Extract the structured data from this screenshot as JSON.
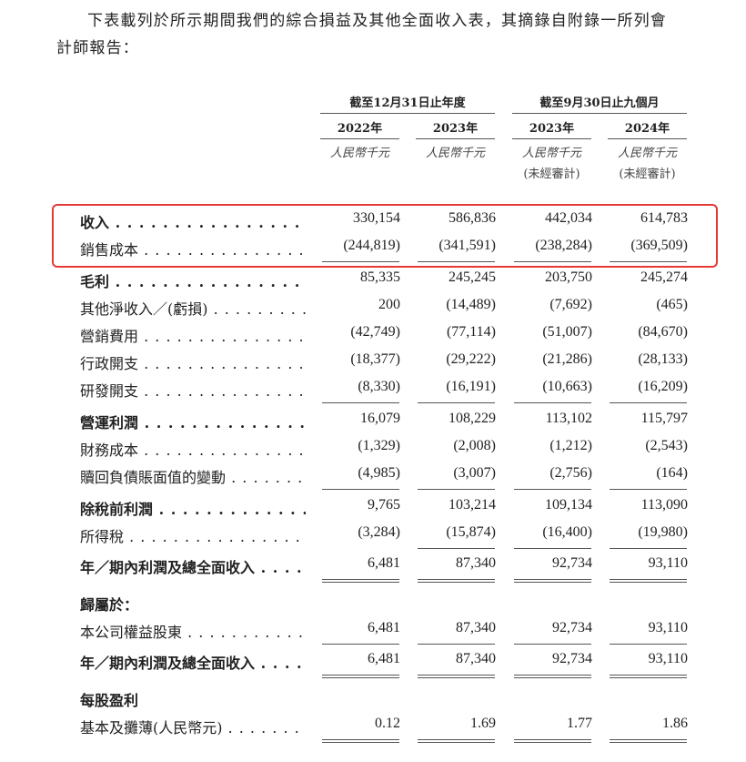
{
  "intro": {
    "line1": "下表載列於所示期間我們的綜合損益及其他全面收入表，其摘錄自附錄一所列會",
    "line2": "計師報告："
  },
  "header": {
    "groups": [
      "截至12月31日止年度",
      "截至9月30日止九個月"
    ],
    "years": [
      "2022年",
      "2023年",
      "2023年",
      "2024年"
    ],
    "units": [
      "人民幣千元",
      "人民幣千元",
      "人民幣千元",
      "人民幣千元"
    ],
    "audit": [
      "",
      "",
      "(未經審計)",
      "(未經審計)"
    ]
  },
  "highlight_color": "#e53935",
  "rows": [
    {
      "label": "收入",
      "bold": true,
      "values": [
        "330,154",
        "586,836",
        "442,034",
        "614,783"
      ]
    },
    {
      "label": "銷售成本",
      "bold": false,
      "values": [
        "(244,819)",
        "(341,591)",
        "(238,284)",
        "(369,509)"
      ]
    },
    {
      "label": "毛利",
      "bold": true,
      "values": [
        "85,335",
        "245,245",
        "203,750",
        "245,274"
      ]
    },
    {
      "label": "其他淨收入／(虧損)",
      "bold": false,
      "values": [
        "200",
        "(14,489)",
        "(7,692)",
        "(465)"
      ]
    },
    {
      "label": "營銷費用",
      "bold": false,
      "values": [
        "(42,749)",
        "(77,114)",
        "(51,007)",
        "(84,670)"
      ]
    },
    {
      "label": "行政開支",
      "bold": false,
      "values": [
        "(18,377)",
        "(29,222)",
        "(21,286)",
        "(28,133)"
      ]
    },
    {
      "label": "研發開支",
      "bold": false,
      "values": [
        "(8,330)",
        "(16,191)",
        "(10,663)",
        "(16,209)"
      ]
    },
    {
      "label": "營運利潤",
      "bold": true,
      "values": [
        "16,079",
        "108,229",
        "113,102",
        "115,797"
      ]
    },
    {
      "label": "財務成本",
      "bold": false,
      "values": [
        "(1,329)",
        "(2,008)",
        "(1,212)",
        "(2,543)"
      ]
    },
    {
      "label": "贖回負債賬面值的變動",
      "bold": false,
      "values": [
        "(4,985)",
        "(3,007)",
        "(2,756)",
        "(164)"
      ]
    },
    {
      "label": "除稅前利潤",
      "bold": true,
      "values": [
        "9,765",
        "103,214",
        "109,134",
        "113,090"
      ]
    },
    {
      "label": "所得稅",
      "bold": false,
      "values": [
        "(3,284)",
        "(15,874)",
        "(16,400)",
        "(19,980)"
      ]
    },
    {
      "label": "年／期內利潤及總全面收入",
      "bold": true,
      "values": [
        "6,481",
        "87,340",
        "92,734",
        "93,110"
      ]
    },
    {
      "label": "歸屬於：",
      "bold": true,
      "values": []
    },
    {
      "label": "本公司權益股東",
      "bold": false,
      "values": [
        "6,481",
        "87,340",
        "92,734",
        "93,110"
      ]
    },
    {
      "label": "年／期內利潤及總全面收入",
      "bold": true,
      "values": [
        "6,481",
        "87,340",
        "92,734",
        "93,110"
      ]
    },
    {
      "label": "每股盈利",
      "bold": true,
      "values": []
    },
    {
      "label": "基本及攤薄(人民幣元)",
      "bold": false,
      "values": [
        "0.12",
        "1.69",
        "1.77",
        "1.86"
      ]
    }
  ]
}
